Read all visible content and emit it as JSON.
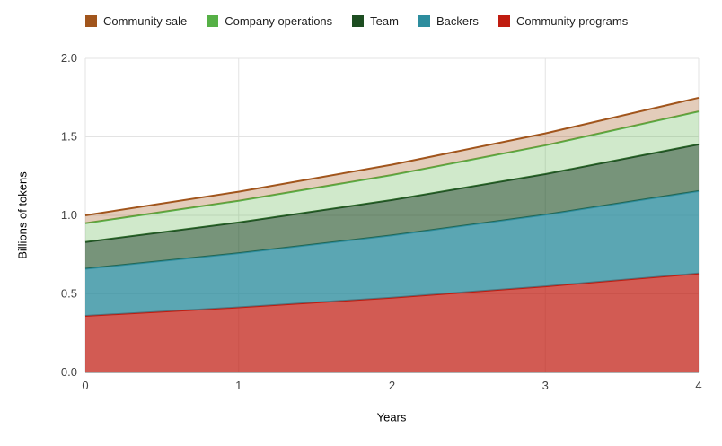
{
  "chart_data": {
    "type": "area",
    "stacked": true,
    "title": "",
    "xlabel": "Years",
    "ylabel": "Billions of tokens",
    "x": [
      0,
      1,
      2,
      3,
      4
    ],
    "xlim": [
      0,
      4
    ],
    "ylim": [
      0,
      2.0
    ],
    "x_ticks": [
      0,
      1,
      2,
      3,
      4
    ],
    "x_tick_labels": [
      "0",
      "1",
      "2",
      "3",
      "4"
    ],
    "y_ticks": [
      0.0,
      0.5,
      1.0,
      1.5,
      2.0
    ],
    "y_tick_labels": [
      "0.0",
      "0.5",
      "1.0",
      "1.5",
      "2.0"
    ],
    "grid": true,
    "grid_color": "#e3e3e3",
    "axis_color": "#616161",
    "background_color": "#ffffff",
    "legend_position": "top",
    "stack_order": "reverse-of-legend (last listed series is bottom band)",
    "series": [
      {
        "name": "Community sale",
        "color": "#a1551c",
        "fill_opacity": 0.3,
        "values": [
          0.05,
          0.058,
          0.066,
          0.076,
          0.087
        ]
      },
      {
        "name": "Company operations",
        "color": "#56b046",
        "fill_opacity": 0.28,
        "values": [
          0.12,
          0.138,
          0.159,
          0.183,
          0.21
        ]
      },
      {
        "name": "Team",
        "color": "#1d4d21",
        "fill_opacity": 0.6,
        "values": [
          0.17,
          0.196,
          0.225,
          0.259,
          0.297
        ]
      },
      {
        "name": "Backers",
        "color": "#2d8d9e",
        "fill_opacity": 0.78,
        "values": [
          0.3,
          0.345,
          0.397,
          0.456,
          0.525
        ]
      },
      {
        "name": "Community programs",
        "color": "#c01c10",
        "fill_opacity": 0.72,
        "values": [
          0.36,
          0.414,
          0.476,
          0.548,
          0.63
        ]
      }
    ],
    "cumulative_totals_at_x": {
      "0": 1.0,
      "4": 1.75
    }
  }
}
